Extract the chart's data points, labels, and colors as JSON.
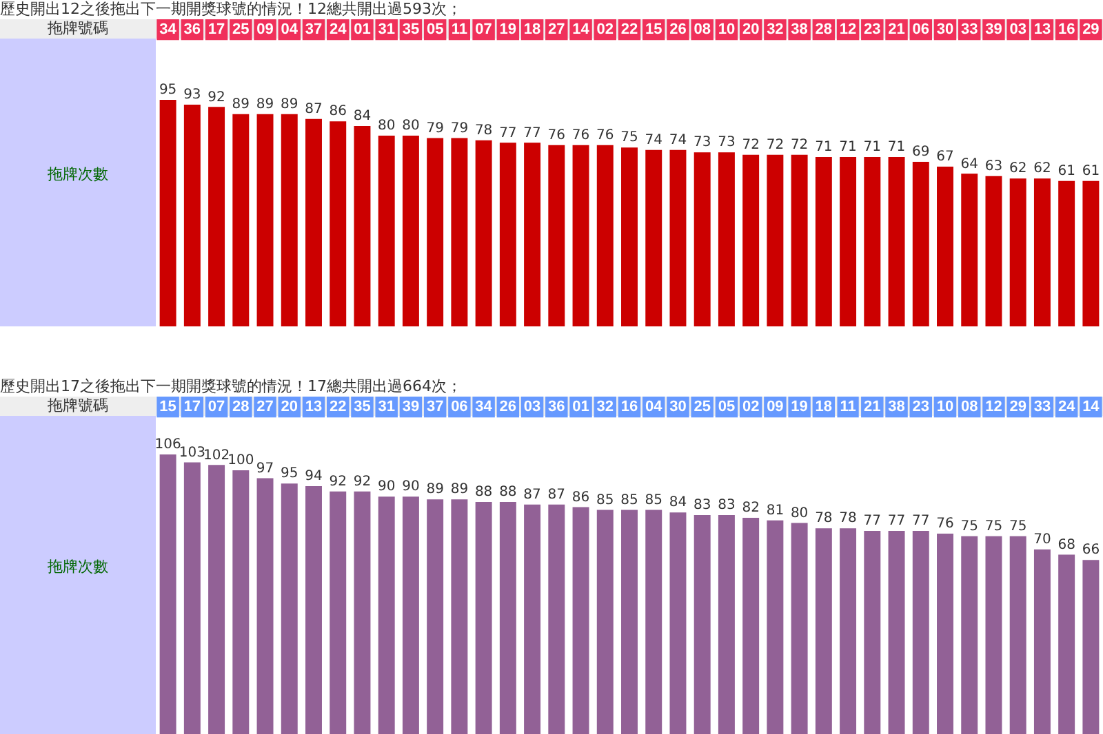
{
  "chart_data": [
    {
      "type": "bar",
      "title": "歷史開出12之後拖出下一期開獎球號的情況！12總共開出過593次；",
      "xlabel": "拖牌號碼",
      "ylabel": "拖牌次數",
      "categories": [
        "34",
        "36",
        "17",
        "25",
        "09",
        "04",
        "37",
        "24",
        "01",
        "31",
        "35",
        "05",
        "11",
        "07",
        "19",
        "18",
        "27",
        "14",
        "02",
        "22",
        "15",
        "26",
        "08",
        "10",
        "20",
        "32",
        "38",
        "28",
        "12",
        "23",
        "21",
        "06",
        "30",
        "33",
        "39",
        "03",
        "13",
        "16",
        "29"
      ],
      "values": [
        95,
        93,
        92,
        89,
        89,
        89,
        87,
        86,
        84,
        80,
        80,
        79,
        79,
        78,
        77,
        77,
        76,
        76,
        76,
        75,
        74,
        74,
        73,
        73,
        72,
        72,
        72,
        71,
        71,
        71,
        71,
        69,
        67,
        64,
        63,
        62,
        62,
        61,
        61
      ],
      "color": "#cc0000",
      "data_labels": true,
      "grid": false,
      "legend": false
    },
    {
      "type": "bar",
      "title": "歷史開出17之後拖出下一期開獎球號的情況！17總共開出過664次；",
      "xlabel": "拖牌號碼",
      "ylabel": "拖牌次數",
      "categories": [
        "15",
        "17",
        "07",
        "28",
        "27",
        "20",
        "13",
        "22",
        "35",
        "31",
        "39",
        "37",
        "06",
        "34",
        "26",
        "03",
        "36",
        "01",
        "32",
        "16",
        "04",
        "30",
        "25",
        "05",
        "02",
        "09",
        "19",
        "18",
        "11",
        "21",
        "38",
        "23",
        "10",
        "08",
        "12",
        "29",
        "33",
        "24",
        "14"
      ],
      "values": [
        106,
        103,
        102,
        100,
        97,
        95,
        94,
        92,
        92,
        90,
        90,
        89,
        89,
        88,
        88,
        87,
        87,
        86,
        85,
        85,
        85,
        84,
        83,
        83,
        82,
        81,
        80,
        78,
        78,
        77,
        77,
        77,
        76,
        75,
        75,
        75,
        70,
        68,
        66
      ],
      "color": "#926196",
      "data_labels": true,
      "grid": false,
      "legend": false
    }
  ]
}
